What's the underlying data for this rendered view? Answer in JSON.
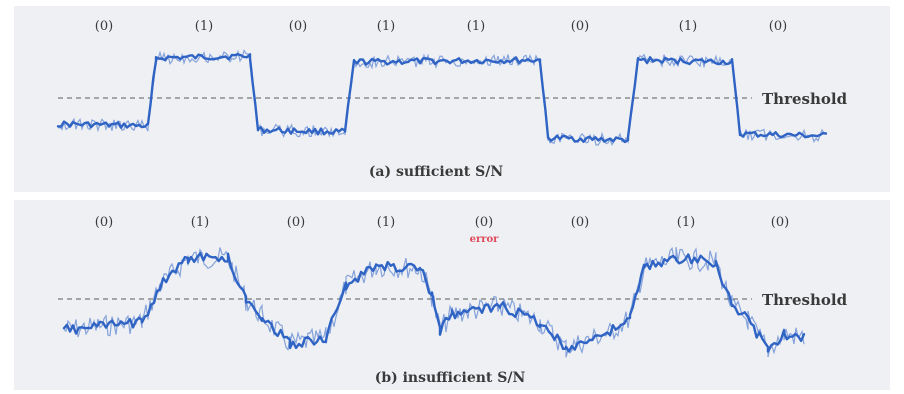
{
  "panels": [
    {
      "bits": [
        "(0)",
        "(1)",
        "(0)",
        "(1)",
        "(1)",
        "(0)",
        "(1)",
        "(0)"
      ],
      "threshold_label": "Threshold",
      "caption": "(a) sufficient S/N",
      "error_mark": ""
    },
    {
      "bits": [
        "(0)",
        "(1)",
        "(0)",
        "(1)",
        "(0)",
        "(0)",
        "(1)",
        "(0)"
      ],
      "threshold_label": "Threshold",
      "caption": "(b) insufficient S/N",
      "error_mark": "error"
    }
  ],
  "colors": {
    "signal": "#2f63c4",
    "threshold": "#8c8c8c",
    "error": "#e0485a",
    "background": "#eef0f4"
  }
}
